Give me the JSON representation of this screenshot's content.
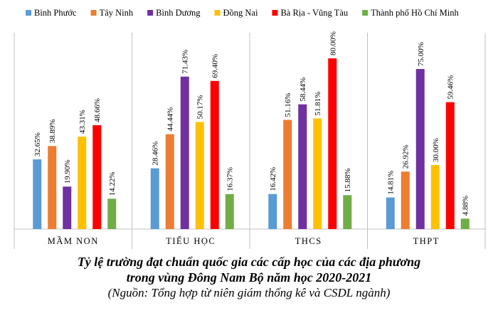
{
  "chart_data": {
    "type": "bar",
    "categories": [
      "MẦM NON",
      "TIỂU HỌC",
      "THCS",
      "THPT"
    ],
    "series": [
      {
        "name": "Bình Phước",
        "color": "#5B9BD5",
        "values": [
          32.65,
          28.46,
          16.42,
          14.81
        ],
        "labels": [
          "32.65%",
          "28.46%",
          "16.42%",
          "14.81%"
        ]
      },
      {
        "name": "Tây Ninh",
        "color": "#ED7D31",
        "values": [
          38.89,
          44.44,
          51.16,
          26.92
        ],
        "labels": [
          "38.89%",
          "44.44%",
          "51.16%",
          "26.92%"
        ]
      },
      {
        "name": "Bình Dương",
        "color": "#7030A0",
        "values": [
          19.9,
          71.43,
          58.44,
          75.0
        ],
        "labels": [
          "19.90%",
          "71.43%",
          "58.44%",
          "75.00%"
        ]
      },
      {
        "name": "Đồng Nai",
        "color": "#FFC000",
        "values": [
          43.31,
          50.17,
          51.81,
          30.0
        ],
        "labels": [
          "43.31%",
          "50.17%",
          "51.81%",
          "30.00%"
        ]
      },
      {
        "name": "Bà Rịa - Vũng Tàu",
        "color": "#FF0000",
        "values": [
          48.66,
          69.4,
          80.0,
          59.46
        ],
        "labels": [
          "48.66%",
          "69.40%",
          "80.00%",
          "59.46%"
        ]
      },
      {
        "name": "Thành phố Hồ Chí Minh",
        "color": "#70AD47",
        "values": [
          14.22,
          16.37,
          15.88,
          4.88
        ],
        "labels": [
          "14.22%",
          "16.37%",
          "15.88%",
          "4.88%"
        ]
      }
    ],
    "ylim": [
      0,
      100
    ],
    "legend_position": "top",
    "grid": false,
    "axis_color": "#c0c0c0"
  },
  "caption": {
    "line1": "Tỷ lệ trường đạt chuẩn quốc gia các cấp học của các địa phương",
    "line2": "trong vùng Đông Nam Bộ năm học 2020-2021",
    "source": "(Nguồn: Tổng hợp từ niên giám thống kê và CSDL ngành)"
  }
}
